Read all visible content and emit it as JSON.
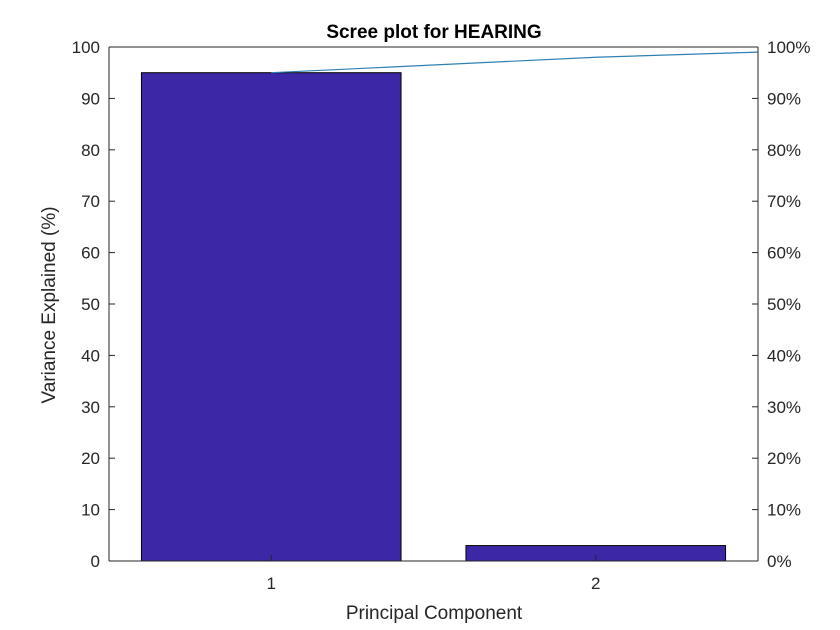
{
  "chart_data": {
    "type": "bar",
    "title": "Scree plot  for HEARING",
    "xlabel": "Principal Component",
    "ylabel": "Variance Explained (%)",
    "categories": [
      "1",
      "2"
    ],
    "values": [
      95,
      3
    ],
    "ylim": [
      0,
      100
    ],
    "yticks": [
      0,
      10,
      20,
      30,
      40,
      50,
      60,
      70,
      80,
      90,
      100
    ],
    "y2lim": [
      0,
      100
    ],
    "y2ticks": [
      "0%",
      "10%",
      "20%",
      "30%",
      "40%",
      "50%",
      "60%",
      "70%",
      "80%",
      "90%",
      "100%"
    ],
    "cumulative_line": {
      "x": [
        1,
        2,
        2.5
      ],
      "values": [
        95,
        98,
        99
      ]
    },
    "grid": false,
    "legend": "none",
    "colors": {
      "bar": "#3c27a6",
      "line": "#2f7fb5",
      "axis": "#262626"
    }
  }
}
